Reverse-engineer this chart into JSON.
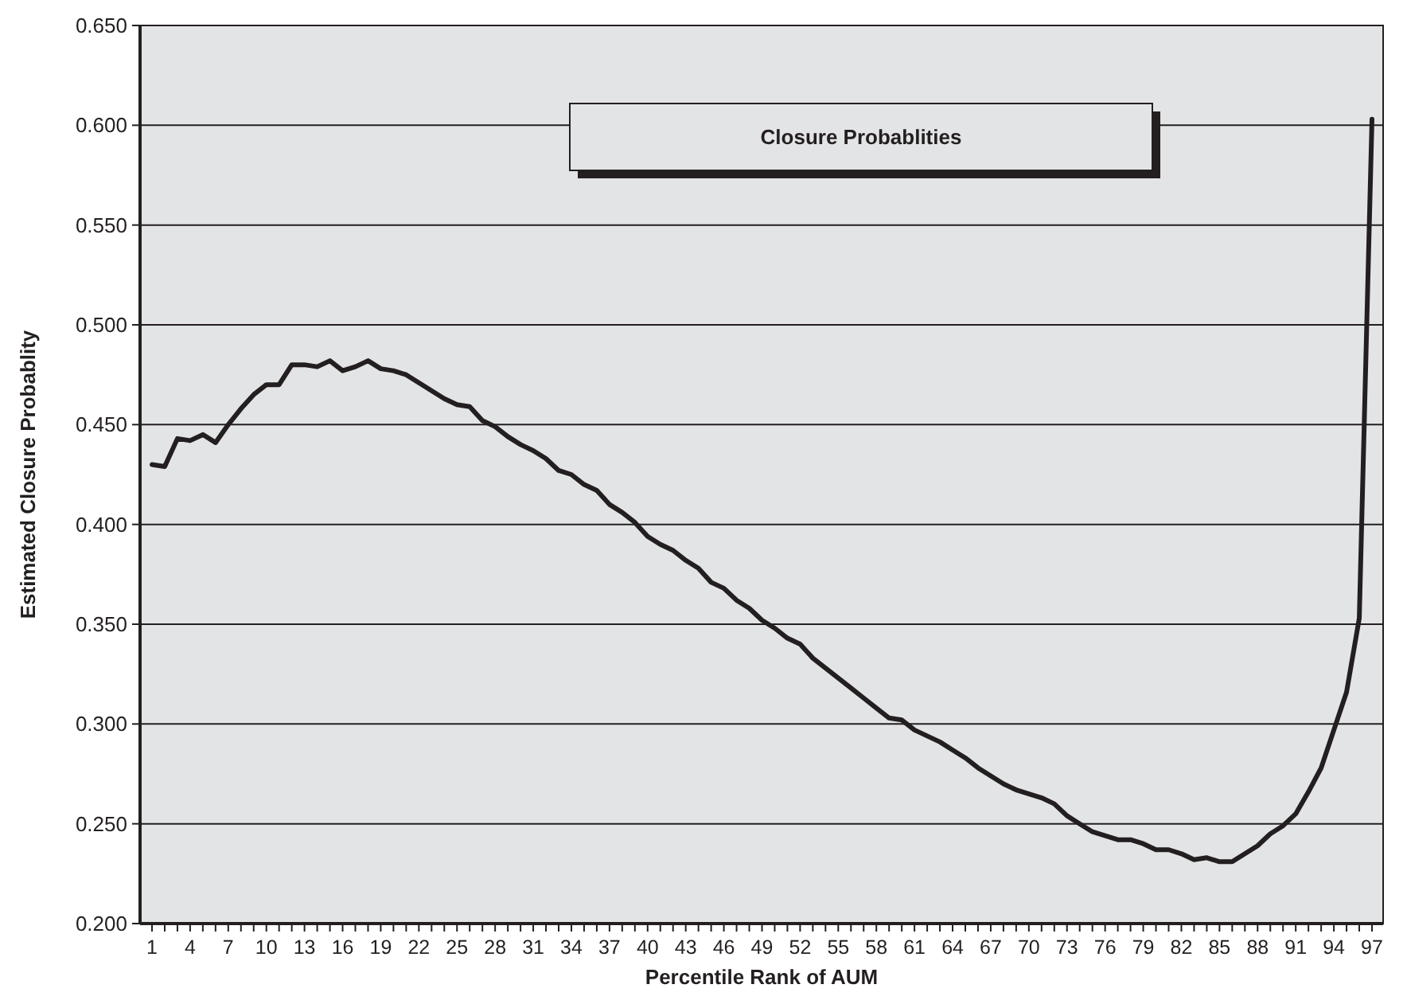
{
  "chart_data": {
    "type": "line",
    "title": "Closure Probablities",
    "xlabel": "Percentile Rank of AUM",
    "ylabel": "Estimated Closure Probablity",
    "categories": [
      "1",
      null,
      null,
      "4",
      null,
      null,
      "7",
      null,
      null,
      "10",
      null,
      null,
      "13",
      null,
      null,
      "16",
      null,
      null,
      "19",
      null,
      null,
      "22",
      null,
      null,
      "25",
      null,
      null,
      "28",
      null,
      null,
      "31",
      null,
      null,
      "34",
      null,
      null,
      "37",
      null,
      null,
      "40",
      null,
      null,
      "43",
      null,
      null,
      "46",
      null,
      null,
      "49",
      null,
      null,
      "52",
      null,
      null,
      "55",
      null,
      null,
      "58",
      null,
      null,
      "61",
      null,
      null,
      "64",
      null,
      null,
      "67",
      null,
      null,
      "70",
      null,
      null,
      "73",
      null,
      null,
      "76",
      null,
      null,
      "79",
      null,
      null,
      "82",
      null,
      null,
      "85",
      null,
      null,
      "88",
      null,
      null,
      "91",
      null,
      null,
      "94",
      null,
      null,
      "97"
    ],
    "series": [
      {
        "color": "#231f20",
        "values": [
          0.43,
          0.429,
          0.443,
          0.442,
          0.445,
          0.441,
          0.45,
          0.458,
          0.465,
          0.47,
          0.47,
          0.48,
          0.48,
          0.479,
          0.482,
          0.477,
          0.479,
          0.482,
          0.478,
          0.477,
          0.475,
          0.471,
          0.467,
          0.463,
          0.46,
          0.459,
          0.452,
          0.449,
          0.444,
          0.44,
          0.437,
          0.433,
          0.427,
          0.425,
          0.42,
          0.417,
          0.41,
          0.406,
          0.401,
          0.394,
          0.39,
          0.387,
          0.382,
          0.378,
          0.371,
          0.368,
          0.362,
          0.358,
          0.352,
          0.348,
          0.343,
          0.34,
          0.333,
          0.328,
          0.323,
          0.318,
          0.313,
          0.308,
          0.303,
          0.302,
          0.297,
          0.294,
          0.291,
          0.287,
          0.283,
          0.278,
          0.274,
          0.27,
          0.267,
          0.265,
          0.263,
          0.26,
          0.254,
          0.25,
          0.246,
          0.244,
          0.242,
          0.242,
          0.24,
          0.237,
          0.237,
          0.235,
          0.232,
          0.233,
          0.231,
          0.231,
          0.235,
          0.239,
          0.245,
          0.249,
          0.255,
          0.266,
          0.278,
          0.297,
          0.316,
          0.353,
          0.603
        ]
      }
    ],
    "ylim": [
      0.2,
      0.65
    ],
    "yticks": [
      {
        "value": 0.2,
        "label": "0.200"
      },
      {
        "value": 0.25,
        "label": "0.250"
      },
      {
        "value": 0.3,
        "label": "0.300"
      },
      {
        "value": 0.35,
        "label": "0.350"
      },
      {
        "value": 0.4,
        "label": "0.400"
      },
      {
        "value": 0.45,
        "label": "0.450"
      },
      {
        "value": 0.5,
        "label": "0.500"
      },
      {
        "value": 0.55,
        "label": "0.550"
      },
      {
        "value": 0.6,
        "label": "0.600"
      },
      {
        "value": 0.65,
        "label": "0.650"
      }
    ],
    "grid": "y",
    "marker": "none",
    "line_style": "solid"
  }
}
